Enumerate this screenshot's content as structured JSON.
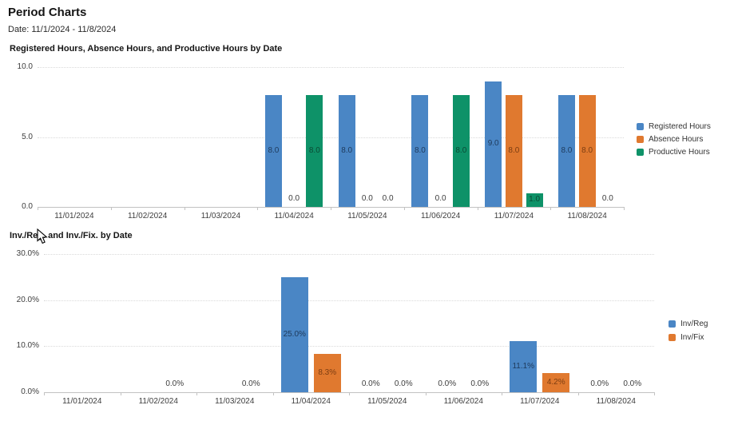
{
  "page": {
    "title": "Period Charts",
    "date_label": "Date: 11/1/2024 - 11/8/2024"
  },
  "colors": {
    "series_blue": "#4A86C5",
    "series_orange": "#E0792F",
    "series_green": "#0E9268",
    "gridline": "#dadada",
    "axis_line": "#c2c2c2",
    "axis_text": "#3d3d3d"
  },
  "chart_data": [
    {
      "type": "bar",
      "title": "Registered Hours, Absence Hours, and Productive Hours by Date",
      "categories": [
        "11/01/2024",
        "11/02/2024",
        "11/03/2024",
        "11/04/2024",
        "11/05/2024",
        "11/06/2024",
        "11/07/2024",
        "11/08/2024"
      ],
      "series": [
        {
          "name": "Registered Hours",
          "color": "#4A86C5",
          "label_color": "#1e3a5c",
          "values": [
            null,
            null,
            null,
            8.0,
            8.0,
            8.0,
            9.0,
            8.0
          ]
        },
        {
          "name": "Absence Hours",
          "color": "#E0792F",
          "label_color": "#7c3d12",
          "values": [
            null,
            null,
            null,
            0.0,
            0.0,
            0.0,
            8.0,
            8.0
          ]
        },
        {
          "name": "Productive Hours",
          "color": "#0E9268",
          "label_color": "#0b4a34",
          "values": [
            null,
            null,
            null,
            8.0,
            0.0,
            8.0,
            1.0,
            0.0
          ]
        }
      ],
      "ylim": [
        0,
        10
      ],
      "yticks": [
        {
          "value": 10,
          "label": "10.0"
        },
        {
          "value": 5,
          "label": "5.0"
        },
        {
          "value": 0,
          "label": "0.0"
        }
      ],
      "value_decimals": 1,
      "value_suffix": "",
      "grid": "horizontal-dotted",
      "legend_position": "right"
    },
    {
      "type": "bar",
      "title": "Inv./Reg. and Inv./Fix. by Date",
      "categories": [
        "11/01/2024",
        "11/02/2024",
        "11/03/2024",
        "11/04/2024",
        "11/05/2024",
        "11/06/2024",
        "11/07/2024",
        "11/08/2024"
      ],
      "series": [
        {
          "name": "Inv/Reg",
          "color": "#4A86C5",
          "label_color": "#1e3a5c",
          "values": [
            null,
            null,
            null,
            25.0,
            0.0,
            0.0,
            11.1,
            0.0
          ]
        },
        {
          "name": "Inv/Fix",
          "color": "#E0792F",
          "label_color": "#7c3d12",
          "values": [
            null,
            0.0,
            0.0,
            8.3,
            0.0,
            0.0,
            4.2,
            0.0
          ]
        }
      ],
      "ylim": [
        0,
        30
      ],
      "yticks": [
        {
          "value": 30,
          "label": "30.0%"
        },
        {
          "value": 20,
          "label": "20.0%"
        },
        {
          "value": 10,
          "label": "10.0%"
        },
        {
          "value": 0,
          "label": "0.0%"
        }
      ],
      "value_decimals": 1,
      "value_suffix": "%",
      "grid": "horizontal-dotted",
      "legend_position": "right"
    }
  ]
}
